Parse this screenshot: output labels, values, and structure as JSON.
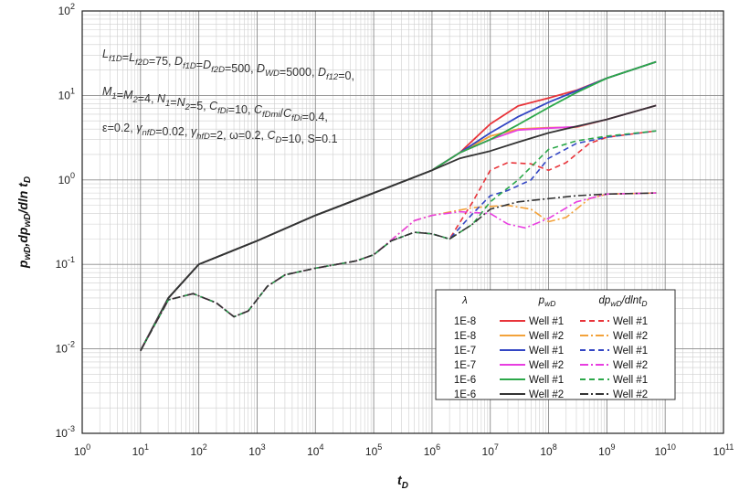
{
  "chart_data": {
    "type": "line",
    "xlabel": "t_D",
    "ylabel": "p_wD, dp_wD/dln t_D",
    "xscale": "log",
    "yscale": "log",
    "xlim": [
      1,
      100000000000.0
    ],
    "ylim": [
      0.001,
      100
    ],
    "x_tick_exponents": [
      0,
      1,
      2,
      3,
      4,
      5,
      6,
      7,
      8,
      9,
      10,
      11
    ],
    "y_tick_exponents": [
      -3,
      -2,
      -1,
      0,
      1,
      2
    ],
    "grid": true,
    "annotations": [
      "L_f1D=L_f2D=75, D_f1D=D_f2D=500, D_WD=5000, D_f12=0,",
      "M_1=M_2=4, N_1=N_2=5, C_fDi=10, C_fDmi/C_fDi=0.4,",
      "ε=0.2, γ_nfD=0.02, γ_hfD=2, ω=0.2, C_D=10, S=0.1"
    ],
    "legend": {
      "position": "bottom-right",
      "headers": [
        "λ",
        "p_wD",
        "dp_wD/dlnt_D"
      ],
      "lambdas": [
        "1E-8",
        "1E-8",
        "1E-7",
        "1E-7",
        "1E-6",
        "1E-6"
      ],
      "wells": [
        "Well #1",
        "Well #2",
        "Well #1",
        "Well #2",
        "Well #1",
        "Well #2"
      ]
    },
    "colors": [
      "#e8343a",
      "#f3a23a",
      "#3346c4",
      "#e83ee0",
      "#2ca84a",
      "#333333"
    ],
    "series": [
      {
        "lambda": "1E-8",
        "well": "Well #1",
        "kind": "p",
        "points": [
          [
            10,
            0.0095
          ],
          [
            30,
            0.04
          ],
          [
            100,
            0.1
          ],
          [
            1000,
            0.19
          ],
          [
            10000,
            0.38
          ],
          [
            100000,
            0.7
          ],
          [
            1000000,
            1.3
          ],
          [
            3000000,
            2.1
          ],
          [
            10000000,
            4.6
          ],
          [
            30000000,
            7.5
          ],
          [
            100000000,
            9.3
          ],
          [
            300000000,
            11.5
          ],
          [
            1000000000,
            16
          ],
          [
            7000000000,
            25
          ]
        ]
      },
      {
        "lambda": "1E-8",
        "well": "Well #2",
        "kind": "p",
        "points": [
          [
            10,
            0.0095
          ],
          [
            30,
            0.04
          ],
          [
            100,
            0.1
          ],
          [
            1000,
            0.19
          ],
          [
            10000,
            0.38
          ],
          [
            100000,
            0.7
          ],
          [
            1000000,
            1.3
          ],
          [
            3000000,
            2.1
          ],
          [
            10000000,
            3.3
          ],
          [
            30000000,
            4.0
          ],
          [
            100000000,
            4.15
          ],
          [
            300000000,
            4.2
          ],
          [
            1000000000,
            5.2
          ],
          [
            7000000000,
            7.6
          ]
        ]
      },
      {
        "lambda": "1E-7",
        "well": "Well #1",
        "kind": "p",
        "points": [
          [
            10,
            0.0095
          ],
          [
            30,
            0.04
          ],
          [
            100,
            0.1
          ],
          [
            1000,
            0.19
          ],
          [
            10000,
            0.38
          ],
          [
            100000,
            0.7
          ],
          [
            1000000,
            1.3
          ],
          [
            3000000,
            2.1
          ],
          [
            10000000,
            3.6
          ],
          [
            30000000,
            5.6
          ],
          [
            100000000,
            8.3
          ],
          [
            300000000,
            11.3
          ],
          [
            1000000000,
            16
          ],
          [
            7000000000,
            25
          ]
        ]
      },
      {
        "lambda": "1E-7",
        "well": "Well #2",
        "kind": "p",
        "points": [
          [
            10,
            0.0095
          ],
          [
            30,
            0.04
          ],
          [
            100,
            0.1
          ],
          [
            1000,
            0.19
          ],
          [
            10000,
            0.38
          ],
          [
            100000,
            0.7
          ],
          [
            1000000,
            1.3
          ],
          [
            3000000,
            2.1
          ],
          [
            10000000,
            3.0
          ],
          [
            30000000,
            3.9
          ],
          [
            100000000,
            4.1
          ],
          [
            300000000,
            4.25
          ],
          [
            1000000000,
            5.2
          ],
          [
            7000000000,
            7.6
          ]
        ]
      },
      {
        "lambda": "1E-6",
        "well": "Well #1",
        "kind": "p",
        "points": [
          [
            10,
            0.0095
          ],
          [
            30,
            0.04
          ],
          [
            100,
            0.1
          ],
          [
            1000,
            0.19
          ],
          [
            10000,
            0.38
          ],
          [
            100000,
            0.7
          ],
          [
            1000000,
            1.3
          ],
          [
            3000000,
            2.1
          ],
          [
            10000000,
            3.0
          ],
          [
            30000000,
            4.5
          ],
          [
            100000000,
            7.2
          ],
          [
            300000000,
            10.8
          ],
          [
            1000000000,
            16
          ],
          [
            7000000000,
            25
          ]
        ]
      },
      {
        "lambda": "1E-6",
        "well": "Well #2",
        "kind": "p",
        "points": [
          [
            10,
            0.0095
          ],
          [
            30,
            0.04
          ],
          [
            100,
            0.1
          ],
          [
            1000,
            0.19
          ],
          [
            10000,
            0.38
          ],
          [
            100000,
            0.7
          ],
          [
            1000000,
            1.3
          ],
          [
            3000000,
            1.8
          ],
          [
            10000000,
            2.2
          ],
          [
            30000000,
            2.8
          ],
          [
            100000000,
            3.6
          ],
          [
            300000000,
            4.3
          ],
          [
            1000000000,
            5.2
          ],
          [
            7000000000,
            7.6
          ]
        ]
      },
      {
        "lambda": "1E-8",
        "well": "Well #1",
        "kind": "dp",
        "points": [
          [
            10,
            0.0095
          ],
          [
            30,
            0.038
          ],
          [
            80,
            0.045
          ],
          [
            200,
            0.035
          ],
          [
            400,
            0.024
          ],
          [
            700,
            0.028
          ],
          [
            1500,
            0.055
          ],
          [
            3000,
            0.075
          ],
          [
            10000,
            0.09
          ],
          [
            50000,
            0.11
          ],
          [
            100000,
            0.13
          ],
          [
            200000,
            0.19
          ],
          [
            500000,
            0.24
          ],
          [
            1000000,
            0.23
          ],
          [
            2000000,
            0.2
          ],
          [
            5000000,
            0.55
          ],
          [
            10000000,
            1.3
          ],
          [
            20000000,
            1.6
          ],
          [
            50000000,
            1.55
          ],
          [
            100000000,
            1.3
          ],
          [
            200000000,
            1.6
          ],
          [
            500000000,
            2.7
          ],
          [
            1000000000,
            3.2
          ],
          [
            7000000000,
            3.8
          ]
        ]
      },
      {
        "lambda": "1E-8",
        "well": "Well #2",
        "kind": "dp",
        "points": [
          [
            10,
            0.0095
          ],
          [
            30,
            0.038
          ],
          [
            80,
            0.045
          ],
          [
            200,
            0.035
          ],
          [
            400,
            0.024
          ],
          [
            700,
            0.028
          ],
          [
            1500,
            0.055
          ],
          [
            3000,
            0.075
          ],
          [
            10000,
            0.09
          ],
          [
            50000,
            0.11
          ],
          [
            100000,
            0.13
          ],
          [
            500000,
            0.33
          ],
          [
            1000000,
            0.38
          ],
          [
            5000000,
            0.47
          ],
          [
            20000000,
            0.5
          ],
          [
            50000000,
            0.45
          ],
          [
            100000000,
            0.32
          ],
          [
            200000000,
            0.36
          ],
          [
            500000000,
            0.6
          ],
          [
            1000000000,
            0.68
          ],
          [
            7000000000,
            0.7
          ]
        ]
      },
      {
        "lambda": "1E-7",
        "well": "Well #1",
        "kind": "dp",
        "points": [
          [
            10,
            0.0095
          ],
          [
            30,
            0.038
          ],
          [
            80,
            0.045
          ],
          [
            200,
            0.035
          ],
          [
            400,
            0.024
          ],
          [
            700,
            0.028
          ],
          [
            1500,
            0.055
          ],
          [
            3000,
            0.075
          ],
          [
            10000,
            0.09
          ],
          [
            50000,
            0.11
          ],
          [
            100000,
            0.13
          ],
          [
            200000,
            0.19
          ],
          [
            500000,
            0.24
          ],
          [
            1000000,
            0.23
          ],
          [
            2000000,
            0.2
          ],
          [
            5000000,
            0.4
          ],
          [
            10000000,
            0.65
          ],
          [
            20000000,
            0.75
          ],
          [
            50000000,
            1.0
          ],
          [
            100000000,
            1.8
          ],
          [
            300000000,
            2.7
          ],
          [
            1000000000,
            3.2
          ],
          [
            7000000000,
            3.8
          ]
        ]
      },
      {
        "lambda": "1E-7",
        "well": "Well #2",
        "kind": "dp",
        "points": [
          [
            10,
            0.0095
          ],
          [
            30,
            0.038
          ],
          [
            80,
            0.045
          ],
          [
            200,
            0.035
          ],
          [
            400,
            0.024
          ],
          [
            700,
            0.028
          ],
          [
            1500,
            0.055
          ],
          [
            3000,
            0.075
          ],
          [
            10000,
            0.09
          ],
          [
            50000,
            0.11
          ],
          [
            100000,
            0.13
          ],
          [
            500000,
            0.33
          ],
          [
            1000000,
            0.38
          ],
          [
            3000000,
            0.42
          ],
          [
            10000000,
            0.4
          ],
          [
            20000000,
            0.3
          ],
          [
            40000000,
            0.27
          ],
          [
            100000000,
            0.35
          ],
          [
            300000000,
            0.55
          ],
          [
            1000000000,
            0.68
          ],
          [
            7000000000,
            0.7
          ]
        ]
      },
      {
        "lambda": "1E-6",
        "well": "Well #1",
        "kind": "dp",
        "points": [
          [
            10,
            0.0095
          ],
          [
            30,
            0.038
          ],
          [
            80,
            0.045
          ],
          [
            200,
            0.035
          ],
          [
            400,
            0.024
          ],
          [
            700,
            0.028
          ],
          [
            1500,
            0.055
          ],
          [
            3000,
            0.075
          ],
          [
            10000,
            0.09
          ],
          [
            50000,
            0.11
          ],
          [
            100000,
            0.13
          ],
          [
            200000,
            0.19
          ],
          [
            500000,
            0.24
          ],
          [
            1000000,
            0.23
          ],
          [
            2000000,
            0.2
          ],
          [
            5000000,
            0.3
          ],
          [
            10000000,
            0.55
          ],
          [
            30000000,
            1.0
          ],
          [
            100000000,
            2.3
          ],
          [
            300000000,
            2.9
          ],
          [
            1000000000,
            3.3
          ],
          [
            7000000000,
            3.8
          ]
        ]
      },
      {
        "lambda": "1E-6",
        "well": "Well #2",
        "kind": "dp",
        "points": [
          [
            10,
            0.0095
          ],
          [
            30,
            0.038
          ],
          [
            80,
            0.045
          ],
          [
            200,
            0.035
          ],
          [
            400,
            0.024
          ],
          [
            700,
            0.028
          ],
          [
            1500,
            0.055
          ],
          [
            3000,
            0.075
          ],
          [
            10000,
            0.09
          ],
          [
            50000,
            0.11
          ],
          [
            100000,
            0.13
          ],
          [
            200000,
            0.19
          ],
          [
            500000,
            0.24
          ],
          [
            1000000,
            0.23
          ],
          [
            2000000,
            0.2
          ],
          [
            5000000,
            0.3
          ],
          [
            10000000,
            0.45
          ],
          [
            30000000,
            0.55
          ],
          [
            100000000,
            0.6
          ],
          [
            300000000,
            0.65
          ],
          [
            1000000000,
            0.68
          ],
          [
            7000000000,
            0.7
          ]
        ]
      }
    ]
  }
}
